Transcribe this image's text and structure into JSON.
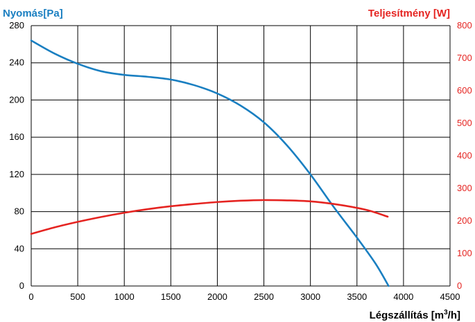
{
  "chart_data": {
    "type": "line",
    "title": "",
    "xlabel": "Légszállítás [m",
    "xlabel_sup": "3",
    "xlabel_tail": "/h]",
    "ylabel": "Nyomás[Pa]",
    "y2label": "Teljesítmény [W]",
    "xlim": [
      0,
      4500
    ],
    "ylim": [
      0,
      280
    ],
    "y2lim": [
      0,
      800
    ],
    "x_ticks": [
      "0",
      "500",
      "1000",
      "1500",
      "2000",
      "2500",
      "3000",
      "3500",
      "4000",
      "4500"
    ],
    "y_ticks": [
      "0",
      "40",
      "80",
      "120",
      "160",
      "200",
      "240",
      "280"
    ],
    "y2_ticks": [
      "0",
      "100",
      "200",
      "300",
      "400",
      "500",
      "600",
      "700",
      "800"
    ],
    "grid": true,
    "colors": {
      "pressure": "#1a7fc1",
      "power": "#e52421",
      "grid": "#000000",
      "axis_text": "#000000"
    },
    "series": [
      {
        "axis": "left",
        "x": [
          0,
          250,
          500,
          750,
          1000,
          1250,
          1500,
          1750,
          2000,
          2250,
          2500,
          2750,
          3000,
          3250,
          3500,
          3700,
          3840
        ],
        "values": [
          264,
          250,
          239,
          231,
          227,
          225,
          222,
          216,
          207,
          194,
          176,
          151,
          120,
          85,
          52,
          24,
          0
        ]
      },
      {
        "axis": "right",
        "x": [
          0,
          250,
          500,
          750,
          1000,
          1250,
          1500,
          1750,
          2000,
          2250,
          2500,
          2750,
          3000,
          3250,
          3500,
          3650,
          3830
        ],
        "values": [
          160,
          180,
          197,
          212,
          225,
          236,
          245,
          252,
          258,
          262,
          264,
          263,
          260,
          252,
          240,
          230,
          213
        ]
      }
    ]
  }
}
